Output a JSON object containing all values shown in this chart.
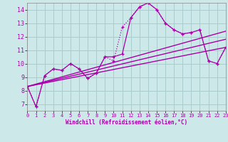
{
  "xlabel": "Windchill (Refroidissement éolien,°C)",
  "background_color": "#cce8e8",
  "grid_color": "#aacccc",
  "line_color": "#aa00aa",
  "x_min": 0,
  "x_max": 23,
  "y_min": 6.5,
  "y_max": 14.5,
  "yticks": [
    7,
    8,
    9,
    10,
    11,
    12,
    13,
    14
  ],
  "xticks": [
    0,
    1,
    2,
    3,
    4,
    5,
    6,
    7,
    8,
    9,
    10,
    11,
    12,
    13,
    14,
    15,
    16,
    17,
    18,
    19,
    20,
    21,
    22,
    23
  ],
  "dotted_series": {
    "x": [
      0,
      1,
      2,
      3,
      4,
      5,
      6,
      7,
      8,
      9,
      10,
      11,
      12,
      13,
      14,
      15,
      16,
      17,
      18,
      19,
      20,
      21,
      22,
      23
    ],
    "y": [
      8.3,
      6.8,
      9.1,
      9.6,
      9.5,
      10.0,
      9.6,
      8.9,
      9.3,
      10.5,
      10.2,
      12.7,
      13.4,
      14.2,
      14.5,
      14.0,
      13.0,
      12.5,
      12.2,
      12.3,
      12.5,
      10.2,
      10.0,
      11.2
    ]
  },
  "solid_series": {
    "x": [
      0,
      1,
      2,
      3,
      4,
      5,
      6,
      7,
      8,
      9,
      10,
      11,
      12,
      13,
      14,
      15,
      16,
      17,
      18,
      19,
      20,
      21,
      22,
      23
    ],
    "y": [
      8.3,
      6.8,
      9.1,
      9.6,
      9.5,
      10.0,
      9.6,
      8.9,
      9.3,
      10.5,
      10.5,
      10.7,
      13.4,
      14.2,
      14.5,
      14.0,
      13.0,
      12.5,
      12.2,
      12.3,
      12.5,
      10.2,
      10.0,
      11.2
    ]
  },
  "regression_lines": [
    {
      "x": [
        0,
        23
      ],
      "y": [
        8.3,
        12.4
      ]
    },
    {
      "x": [
        0,
        23
      ],
      "y": [
        8.3,
        11.8
      ]
    },
    {
      "x": [
        0,
        23
      ],
      "y": [
        8.3,
        11.2
      ]
    }
  ]
}
